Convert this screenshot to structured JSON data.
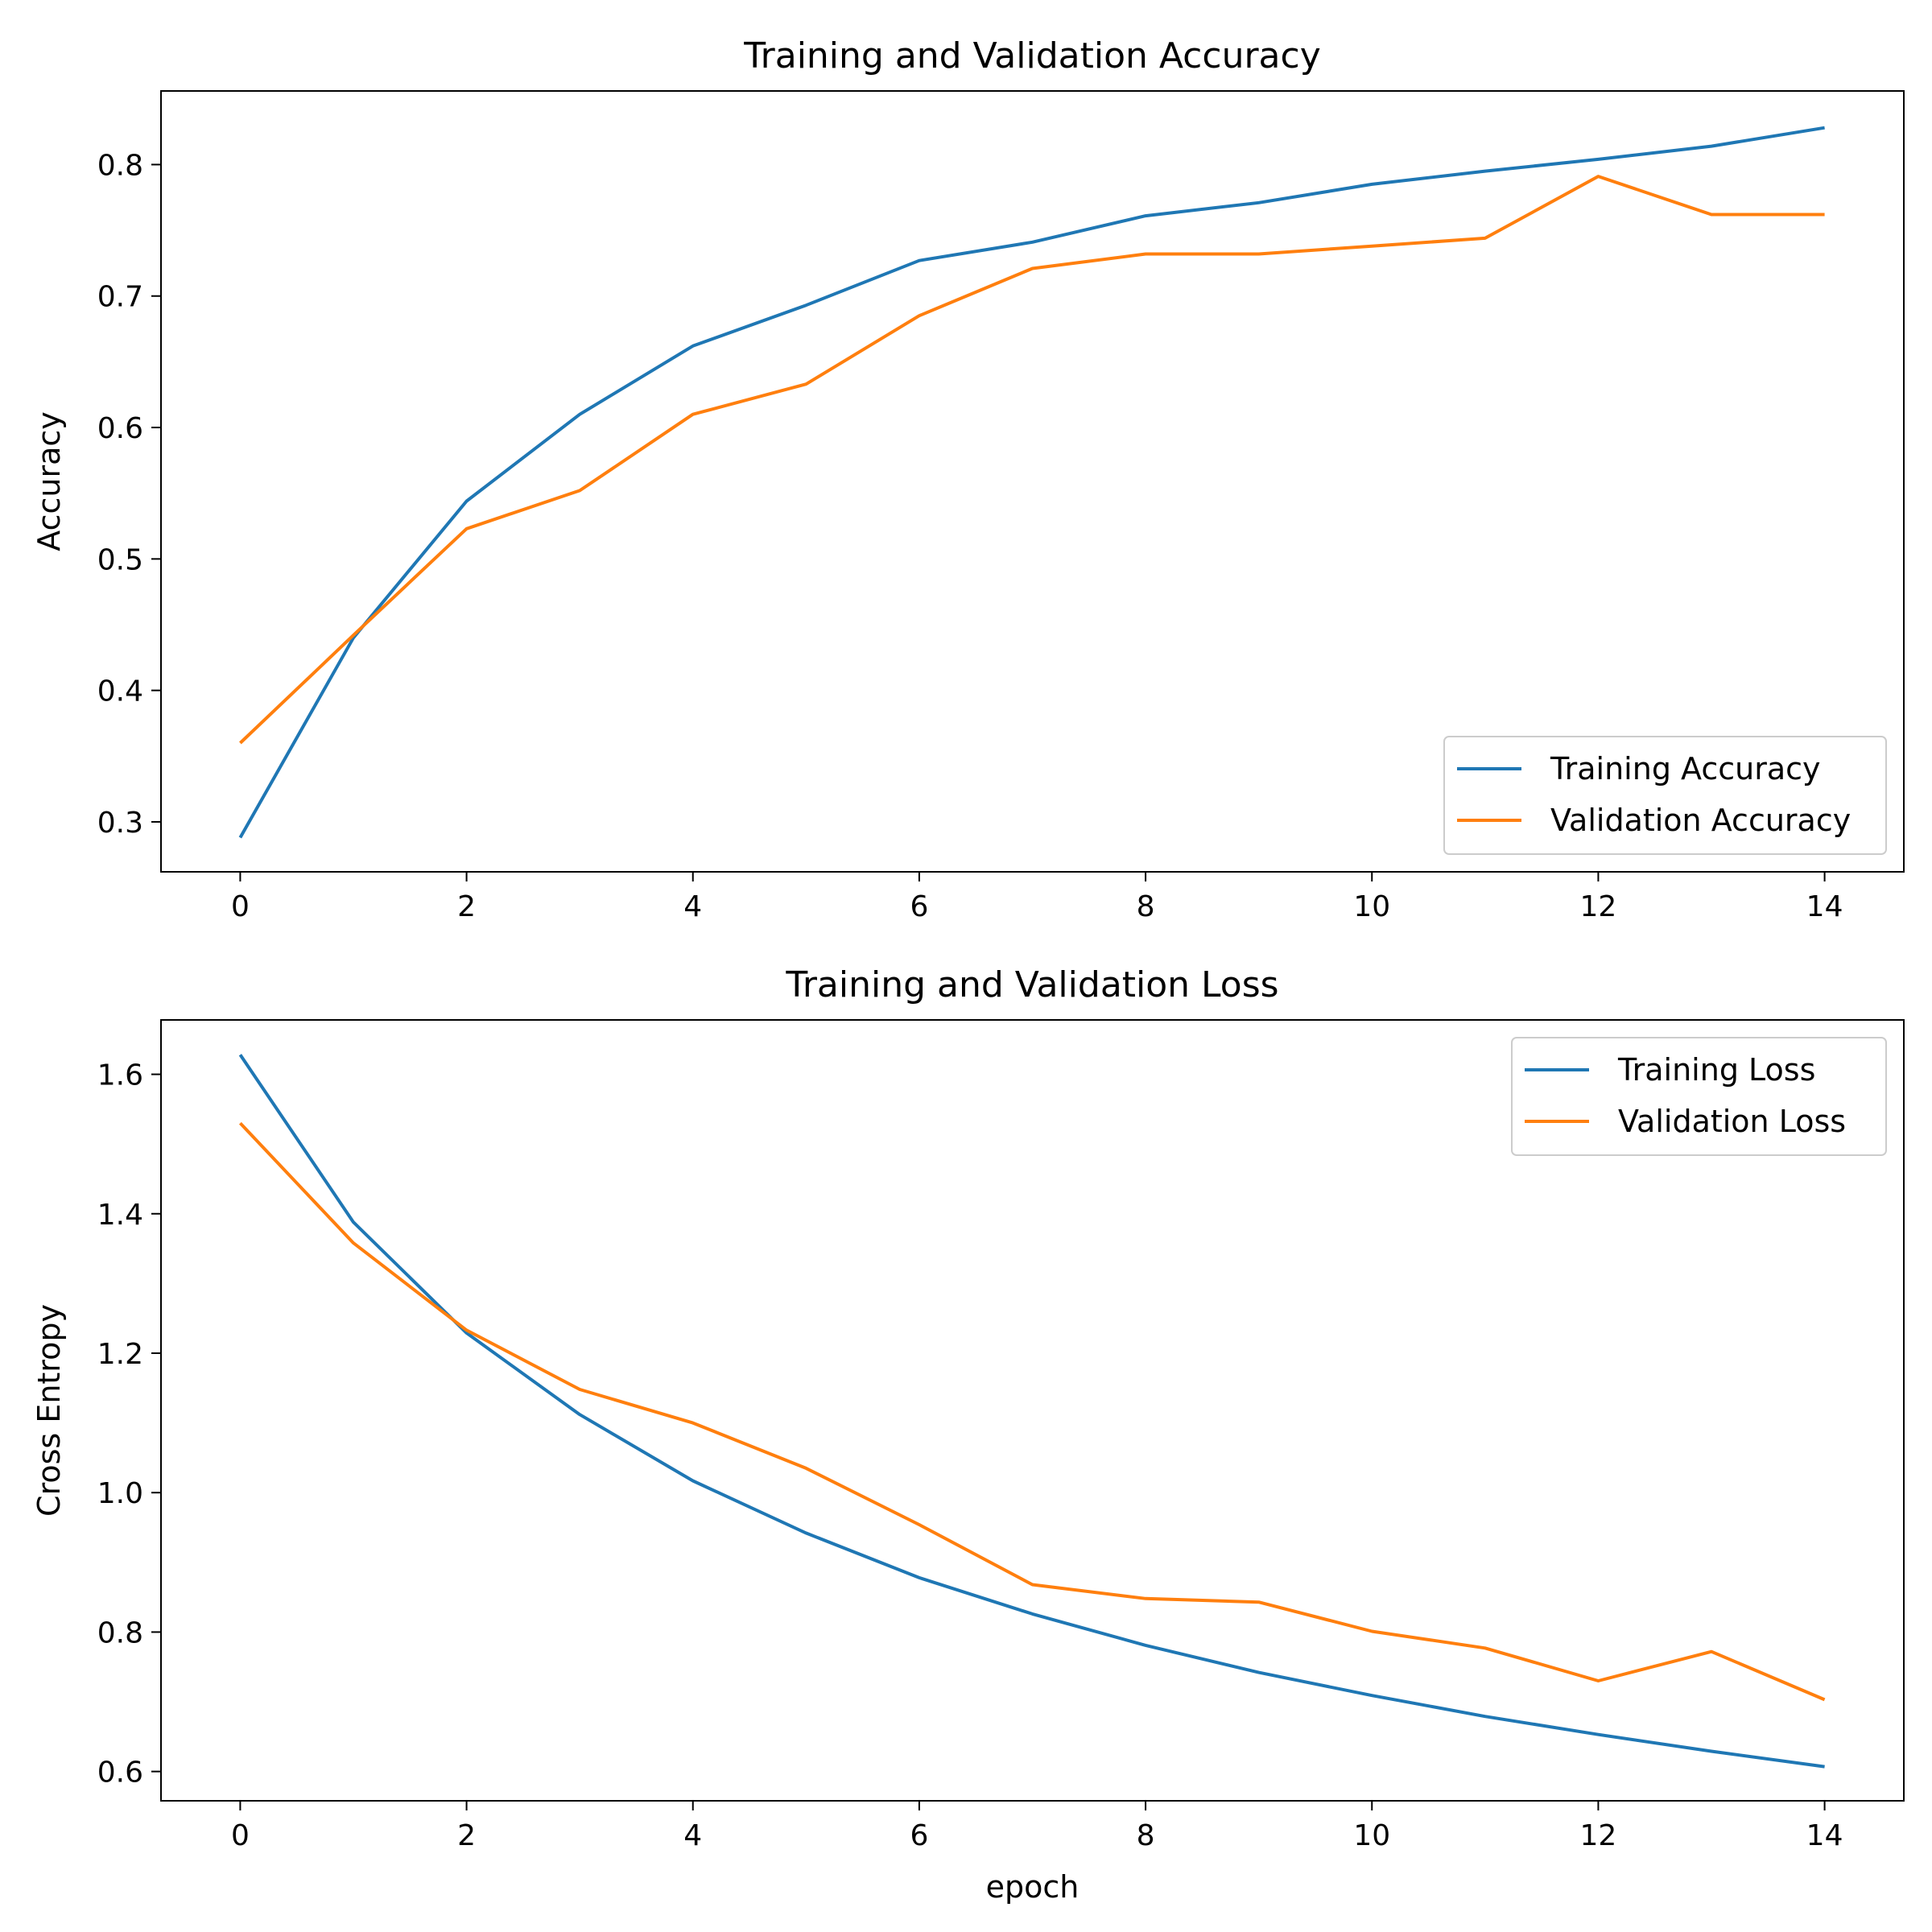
{
  "chart_data": [
    {
      "type": "line",
      "title": "Training and Validation Accuracy",
      "xlabel": "",
      "ylabel": "Accuracy",
      "xlim": [
        -0.7,
        14.7
      ],
      "ylim": [
        0.262,
        0.856
      ],
      "xticks": [
        0,
        2,
        4,
        6,
        8,
        10,
        12,
        14
      ],
      "yticks": [
        0.3,
        0.4,
        0.5,
        0.6,
        0.7,
        0.8
      ],
      "grid": false,
      "legend_position": "lower-right",
      "x": [
        0,
        1,
        2,
        3,
        4,
        5,
        6,
        7,
        8,
        9,
        10,
        11,
        12,
        13,
        14
      ],
      "series": [
        {
          "name": "Training Accuracy",
          "color": "#1f77b4",
          "values": [
            0.288,
            0.44,
            0.544,
            0.61,
            0.662,
            0.693,
            0.727,
            0.741,
            0.761,
            0.771,
            0.785,
            0.795,
            0.804,
            0.814,
            0.828
          ]
        },
        {
          "name": "Validation Accuracy",
          "color": "#ff7f0e",
          "values": [
            0.36,
            0.442,
            0.523,
            0.552,
            0.61,
            0.633,
            0.685,
            0.721,
            0.732,
            0.732,
            0.738,
            0.744,
            0.791,
            0.762,
            0.762
          ]
        }
      ]
    },
    {
      "type": "line",
      "title": "Training and Validation Loss",
      "xlabel": "epoch",
      "ylabel": "Cross Entropy",
      "xlim": [
        -0.7,
        14.7
      ],
      "ylim": [
        0.558,
        1.678
      ],
      "xticks": [
        0,
        2,
        4,
        6,
        8,
        10,
        12,
        14
      ],
      "yticks": [
        0.6,
        0.8,
        1.0,
        1.2,
        1.4,
        1.6
      ],
      "grid": false,
      "legend_position": "upper-right",
      "x": [
        0,
        1,
        2,
        3,
        4,
        5,
        6,
        7,
        8,
        9,
        10,
        11,
        12,
        13,
        14
      ],
      "series": [
        {
          "name": "Training Loss",
          "color": "#1f77b4",
          "values": [
            1.628,
            1.388,
            1.229,
            1.112,
            1.017,
            0.942,
            0.878,
            0.826,
            0.781,
            0.742,
            0.709,
            0.679,
            0.653,
            0.629,
            0.607
          ]
        },
        {
          "name": "Validation Loss",
          "color": "#ff7f0e",
          "values": [
            1.53,
            1.358,
            1.233,
            1.148,
            1.1,
            1.035,
            0.954,
            0.868,
            0.848,
            0.843,
            0.801,
            0.777,
            0.73,
            0.772,
            0.703
          ]
        }
      ]
    }
  ]
}
